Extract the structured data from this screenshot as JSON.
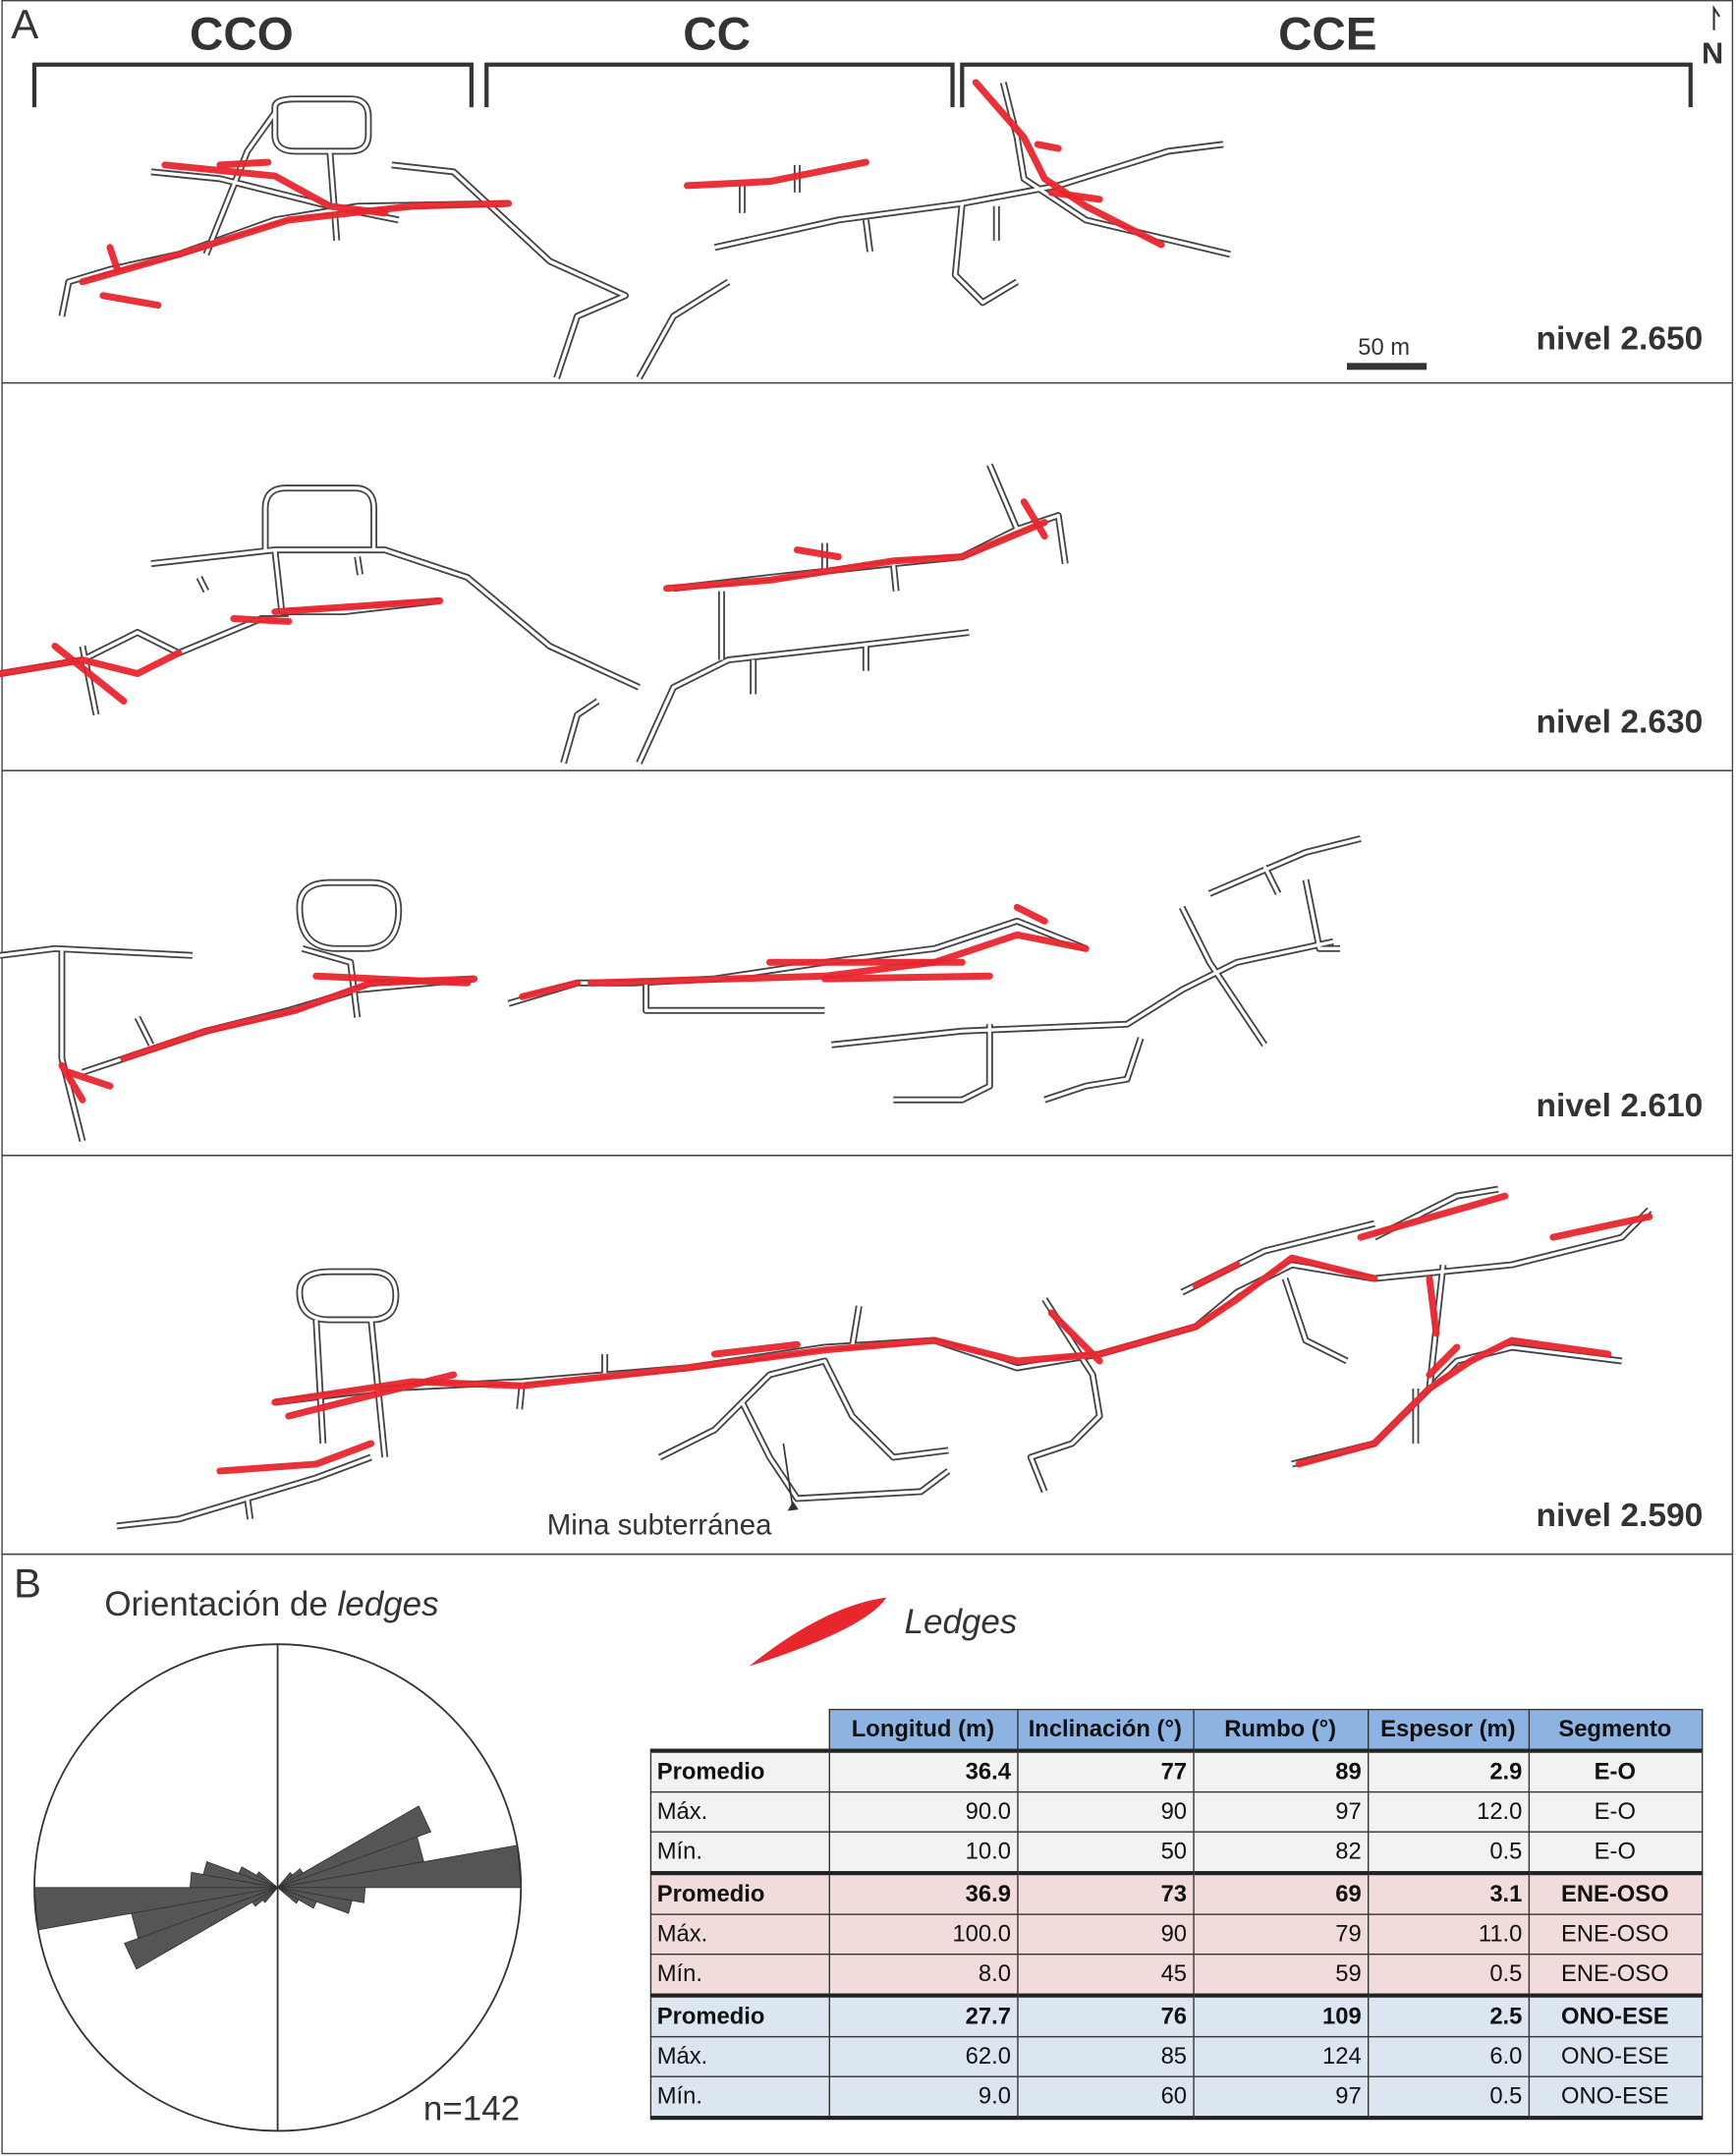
{
  "panel_a": {
    "letter": "A",
    "segments": [
      "CCO",
      "CC",
      "CCE"
    ],
    "north_label": "N",
    "scale_bar": "50 m",
    "levels": [
      "nivel 2.650",
      "nivel 2.630",
      "nivel 2.610",
      "nivel 2.590"
    ],
    "annotation": "Mina subterránea",
    "colors": {
      "tunnels": "#444444",
      "ledges": "#e8262e"
    }
  },
  "panel_b": {
    "letter": "B",
    "rose_title_prefix": "Orientación de ",
    "rose_title_italic": "ledges",
    "n_label": "n=142",
    "legend_label": "Ledges",
    "table": {
      "headers": [
        "",
        "Longitud (m)",
        "Inclinación (°)",
        "Rumbo (°)",
        "Espesor (m)",
        "Segmento"
      ],
      "rows": [
        [
          "Promedio",
          "36.4",
          "77",
          "89",
          "2.9",
          "E-O"
        ],
        [
          "Máx.",
          "90.0",
          "90",
          "97",
          "12.0",
          "E-O"
        ],
        [
          "Mín.",
          "10.0",
          "50",
          "82",
          "0.5",
          "E-O"
        ],
        [
          "Promedio",
          "36.9",
          "73",
          "69",
          "3.1",
          "ENE-OSO"
        ],
        [
          "Máx.",
          "100.0",
          "90",
          "79",
          "11.0",
          "ENE-OSO"
        ],
        [
          "Mín.",
          "8.0",
          "45",
          "59",
          "0.5",
          "ENE-OSO"
        ],
        [
          "Promedio",
          "27.7",
          "76",
          "109",
          "2.5",
          "ONO-ESE"
        ],
        [
          "Máx.",
          "62.0",
          "85",
          "124",
          "6.0",
          "ONO-ESE"
        ],
        [
          "Mín.",
          "9.0",
          "60",
          "97",
          "0.5",
          "ONO-ESE"
        ]
      ],
      "group_colors": [
        "#f2f2f2",
        "#f2dcdb",
        "#dce6f1"
      ],
      "header_color": "#8db3e2"
    }
  },
  "chart_data": {
    "type": "rose",
    "title": "Orientación de ledges",
    "bidirectional": true,
    "bin_width_deg": 10,
    "bins": [
      {
        "from": 40,
        "to": 50,
        "value": 0.08
      },
      {
        "from": 50,
        "to": 60,
        "value": 0.12
      },
      {
        "from": 60,
        "to": 70,
        "value": 0.67
      },
      {
        "from": 70,
        "to": 80,
        "value": 0.61
      },
      {
        "from": 80,
        "to": 90,
        "value": 1.0
      },
      {
        "from": 90,
        "to": 100,
        "value": 0.36
      },
      {
        "from": 100,
        "to": 110,
        "value": 0.31
      },
      {
        "from": 110,
        "to": 120,
        "value": 0.17
      },
      {
        "from": 120,
        "to": 130,
        "value": 0.1
      }
    ],
    "n": 142,
    "color": "#555555"
  }
}
